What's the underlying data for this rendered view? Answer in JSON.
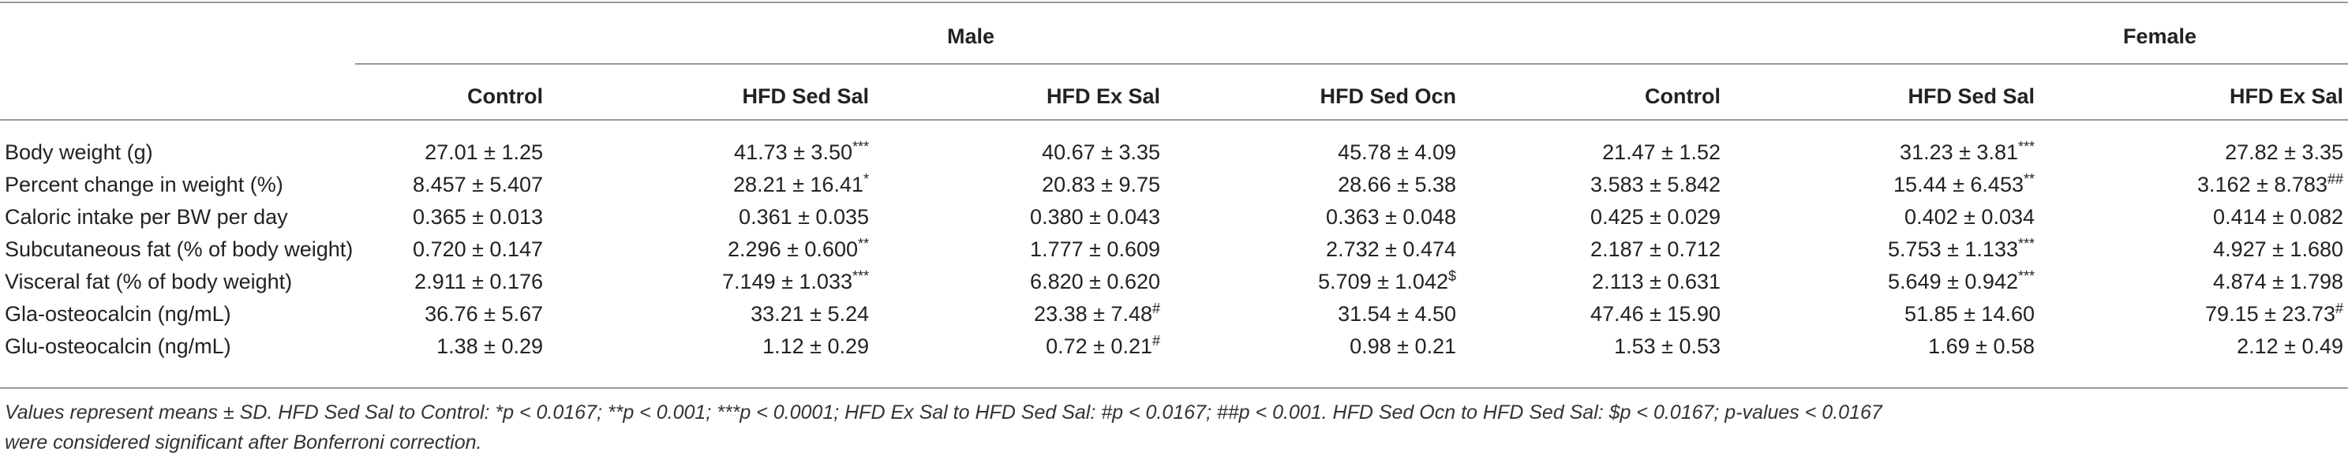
{
  "table": {
    "groups": {
      "male": "Male",
      "female": "Female"
    },
    "columns": [
      "Control",
      "HFD Sed Sal",
      "HFD Ex Sal",
      "HFD Sed Ocn",
      "Control",
      "HFD Sed Sal",
      "HFD Ex Sal"
    ],
    "rows": [
      {
        "label": "Body weight (g)",
        "values": [
          {
            "v": "27.01 ± 1.25",
            "s": ""
          },
          {
            "v": "41.73 ± 3.50",
            "s": "***"
          },
          {
            "v": "40.67 ± 3.35",
            "s": ""
          },
          {
            "v": "45.78 ± 4.09",
            "s": ""
          },
          {
            "v": "21.47 ± 1.52",
            "s": ""
          },
          {
            "v": "31.23 ± 3.81",
            "s": "***"
          },
          {
            "v": "27.82 ± 3.35",
            "s": ""
          }
        ]
      },
      {
        "label": "Percent change in weight (%)",
        "values": [
          {
            "v": "8.457 ± 5.407",
            "s": ""
          },
          {
            "v": "28.21 ± 16.41",
            "s": "*"
          },
          {
            "v": "20.83 ± 9.75",
            "s": ""
          },
          {
            "v": "28.66 ± 5.38",
            "s": ""
          },
          {
            "v": "3.583 ± 5.842",
            "s": ""
          },
          {
            "v": "15.44 ± 6.453",
            "s": "**"
          },
          {
            "v": "3.162 ± 8.783",
            "s": "##"
          }
        ]
      },
      {
        "label": "Caloric intake per BW per day",
        "values": [
          {
            "v": "0.365 ± 0.013",
            "s": ""
          },
          {
            "v": "0.361 ± 0.035",
            "s": ""
          },
          {
            "v": "0.380 ± 0.043",
            "s": ""
          },
          {
            "v": "0.363 ± 0.048",
            "s": ""
          },
          {
            "v": "0.425 ± 0.029",
            "s": ""
          },
          {
            "v": "0.402 ± 0.034",
            "s": ""
          },
          {
            "v": "0.414 ± 0.082",
            "s": ""
          }
        ]
      },
      {
        "label": "Subcutaneous fat (% of body weight)",
        "values": [
          {
            "v": "0.720 ± 0.147",
            "s": ""
          },
          {
            "v": "2.296 ± 0.600",
            "s": "**"
          },
          {
            "v": "1.777 ± 0.609",
            "s": ""
          },
          {
            "v": "2.732 ± 0.474",
            "s": ""
          },
          {
            "v": "2.187 ± 0.712",
            "s": ""
          },
          {
            "v": "5.753 ± 1.133",
            "s": "***"
          },
          {
            "v": "4.927 ± 1.680",
            "s": ""
          }
        ]
      },
      {
        "label": "Visceral fat (% of body weight)",
        "values": [
          {
            "v": "2.911 ± 0.176",
            "s": ""
          },
          {
            "v": "7.149 ± 1.033",
            "s": "***"
          },
          {
            "v": "6.820 ± 0.620",
            "s": ""
          },
          {
            "v": "5.709 ± 1.042",
            "s": "$"
          },
          {
            "v": "2.113 ± 0.631",
            "s": ""
          },
          {
            "v": "5.649 ± 0.942",
            "s": "***"
          },
          {
            "v": "4.874 ± 1.798",
            "s": ""
          }
        ]
      },
      {
        "label": "Gla-osteocalcin (ng/mL)",
        "values": [
          {
            "v": "36.76 ± 5.67",
            "s": ""
          },
          {
            "v": "33.21 ± 5.24",
            "s": ""
          },
          {
            "v": "23.38 ± 7.48",
            "s": "#"
          },
          {
            "v": "31.54 ± 4.50",
            "s": ""
          },
          {
            "v": "47.46 ± 15.90",
            "s": ""
          },
          {
            "v": "51.85 ± 14.60",
            "s": ""
          },
          {
            "v": "79.15 ± 23.73",
            "s": "#"
          }
        ]
      },
      {
        "label": "Glu-osteocalcin (ng/mL)",
        "values": [
          {
            "v": "1.38 ± 0.29",
            "s": ""
          },
          {
            "v": "1.12 ± 0.29",
            "s": ""
          },
          {
            "v": "0.72 ± 0.21",
            "s": "#"
          },
          {
            "v": "0.98 ± 0.21",
            "s": ""
          },
          {
            "v": "1.53 ± 0.53",
            "s": ""
          },
          {
            "v": "1.69 ± 0.58",
            "s": ""
          },
          {
            "v": "2.12 ± 0.49",
            "s": ""
          }
        ]
      }
    ],
    "footnote": [
      "Values represent means ± SD. HFD Sed Sal to Control: *p < 0.0167; **p < 0.001; ***p < 0.0001; HFD Ex Sal to HFD Sed Sal: #p < 0.0167; ##p < 0.001. HFD Sed Ocn to HFD Sed Sal: $p < 0.0167; p-values < 0.0167",
      "were considered significant after Bonferroni correction."
    ]
  }
}
